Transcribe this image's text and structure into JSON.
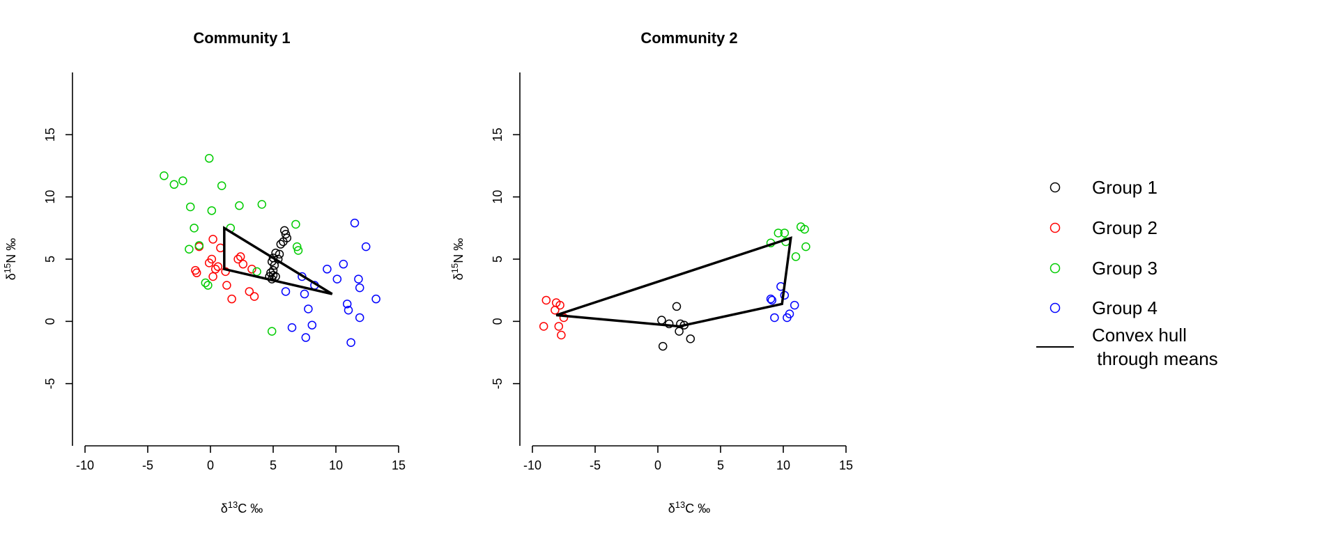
{
  "chart_data": [
    {
      "type": "scatter",
      "title": "Community 1",
      "xlabel": {
        "prefix": "δ",
        "sup": "13",
        "rest": "C ‰"
      },
      "ylabel": {
        "prefix": "δ",
        "sup": "15",
        "rest": "N ‰"
      },
      "xlim": [
        -11,
        16
      ],
      "ylim": [
        -10,
        20
      ],
      "xticks": [
        -10,
        -5,
        0,
        5,
        10,
        15
      ],
      "yticks": [
        -5,
        0,
        5,
        10,
        15
      ],
      "series": [
        {
          "name": "Group 1",
          "color": "#000000",
          "points": [
            [
              5.9,
              7.3
            ],
            [
              6.0,
              7.0
            ],
            [
              6.1,
              6.7
            ],
            [
              5.8,
              6.4
            ],
            [
              5.6,
              6.2
            ],
            [
              5.2,
              5.5
            ],
            [
              5.5,
              5.4
            ],
            [
              5.0,
              5.1
            ],
            [
              5.4,
              5.0
            ],
            [
              4.9,
              4.8
            ],
            [
              5.1,
              4.5
            ],
            [
              5.0,
              4.1
            ],
            [
              4.8,
              3.9
            ],
            [
              5.0,
              3.7
            ],
            [
              4.7,
              3.6
            ],
            [
              4.9,
              3.4
            ],
            [
              5.2,
              3.6
            ]
          ]
        },
        {
          "name": "Group 2",
          "color": "#ff0000",
          "points": [
            [
              0.2,
              6.6
            ],
            [
              0.8,
              5.9
            ],
            [
              -0.9,
              6.0
            ],
            [
              0.1,
              5.0
            ],
            [
              2.2,
              5.0
            ],
            [
              2.4,
              5.2
            ],
            [
              -0.1,
              4.7
            ],
            [
              2.6,
              4.6
            ],
            [
              0.6,
              4.4
            ],
            [
              0.4,
              4.2
            ],
            [
              -1.2,
              4.1
            ],
            [
              1.2,
              4.0
            ],
            [
              -1.1,
              3.9
            ],
            [
              3.3,
              4.2
            ],
            [
              0.2,
              3.6
            ],
            [
              1.3,
              2.9
            ],
            [
              3.1,
              2.4
            ],
            [
              3.5,
              2.0
            ],
            [
              1.7,
              1.8
            ]
          ]
        },
        {
          "name": "Group 3",
          "color": "#00cc00",
          "points": [
            [
              -0.1,
              13.1
            ],
            [
              -3.7,
              11.7
            ],
            [
              -2.2,
              11.3
            ],
            [
              -2.9,
              11.0
            ],
            [
              0.9,
              10.9
            ],
            [
              2.3,
              9.3
            ],
            [
              4.1,
              9.4
            ],
            [
              -1.6,
              9.2
            ],
            [
              0.1,
              8.9
            ],
            [
              6.8,
              7.8
            ],
            [
              1.6,
              7.5
            ],
            [
              -1.3,
              7.5
            ],
            [
              6.9,
              6.0
            ],
            [
              7.0,
              5.7
            ],
            [
              -0.9,
              6.1
            ],
            [
              -1.7,
              5.8
            ],
            [
              3.7,
              4.0
            ],
            [
              -0.4,
              3.1
            ],
            [
              -0.2,
              2.9
            ],
            [
              4.9,
              -0.8
            ]
          ]
        },
        {
          "name": "Group 4",
          "color": "#0000ff",
          "points": [
            [
              11.5,
              7.9
            ],
            [
              12.4,
              6.0
            ],
            [
              10.6,
              4.6
            ],
            [
              9.3,
              4.2
            ],
            [
              7.3,
              3.6
            ],
            [
              10.1,
              3.4
            ],
            [
              11.8,
              3.4
            ],
            [
              8.3,
              2.9
            ],
            [
              11.9,
              2.7
            ],
            [
              6.0,
              2.4
            ],
            [
              7.5,
              2.2
            ],
            [
              13.2,
              1.8
            ],
            [
              10.9,
              1.4
            ],
            [
              7.8,
              1.0
            ],
            [
              11.0,
              0.9
            ],
            [
              11.9,
              0.3
            ],
            [
              8.1,
              -0.3
            ],
            [
              6.5,
              -0.5
            ],
            [
              7.6,
              -1.3
            ],
            [
              11.2,
              -1.7
            ]
          ]
        }
      ],
      "hull": [
        [
          1.1,
          7.5
        ],
        [
          9.7,
          2.2
        ],
        [
          1.1,
          4.2
        ]
      ]
    },
    {
      "type": "scatter",
      "title": "Community 2",
      "xlabel": {
        "prefix": "δ",
        "sup": "13",
        "rest": "C ‰"
      },
      "ylabel": {
        "prefix": "δ",
        "sup": "15",
        "rest": "N ‰"
      },
      "xlim": [
        -11,
        16
      ],
      "ylim": [
        -10,
        20
      ],
      "xticks": [
        -10,
        -5,
        0,
        5,
        10,
        15
      ],
      "yticks": [
        -5,
        0,
        5,
        10,
        15
      ],
      "series": [
        {
          "name": "Group 1",
          "color": "#000000",
          "points": [
            [
              1.5,
              1.2
            ],
            [
              0.3,
              0.1
            ],
            [
              0.9,
              -0.2
            ],
            [
              1.8,
              -0.2
            ],
            [
              2.1,
              -0.3
            ],
            [
              1.7,
              -0.8
            ],
            [
              2.6,
              -1.4
            ],
            [
              0.4,
              -2.0
            ]
          ]
        },
        {
          "name": "Group 2",
          "color": "#ff0000",
          "points": [
            [
              -8.9,
              1.7
            ],
            [
              -8.1,
              1.5
            ],
            [
              -7.8,
              1.3
            ],
            [
              -8.2,
              0.9
            ],
            [
              -7.5,
              0.3
            ],
            [
              -9.1,
              -0.4
            ],
            [
              -7.9,
              -0.4
            ],
            [
              -7.7,
              -1.1
            ]
          ]
        },
        {
          "name": "Group 3",
          "color": "#00cc00",
          "points": [
            [
              11.4,
              7.6
            ],
            [
              11.7,
              7.4
            ],
            [
              9.6,
              7.1
            ],
            [
              10.1,
              7.1
            ],
            [
              9.0,
              6.3
            ],
            [
              10.2,
              6.4
            ],
            [
              11.8,
              6.0
            ],
            [
              11.0,
              5.2
            ]
          ]
        },
        {
          "name": "Group 4",
          "color": "#0000ff",
          "points": [
            [
              9.8,
              2.8
            ],
            [
              10.1,
              2.1
            ],
            [
              9.0,
              1.8
            ],
            [
              9.1,
              1.7
            ],
            [
              10.9,
              1.3
            ],
            [
              10.5,
              0.6
            ],
            [
              9.3,
              0.3
            ],
            [
              10.3,
              0.3
            ]
          ]
        }
      ],
      "hull": [
        [
          -8.1,
          0.5
        ],
        [
          10.6,
          6.7
        ],
        [
          9.9,
          1.4
        ],
        [
          1.7,
          -0.4
        ]
      ]
    }
  ],
  "legend": {
    "placement": "right",
    "items": [
      {
        "type": "point",
        "label": "Group  1",
        "color": "#000000"
      },
      {
        "type": "point",
        "label": "Group  2",
        "color": "#ff0000"
      },
      {
        "type": "point",
        "label": "Group  3",
        "color": "#00cc00"
      },
      {
        "type": "point",
        "label": "Group  4",
        "color": "#0000ff"
      },
      {
        "type": "line",
        "label": "Convex hull",
        "label2": " through means",
        "color": "#000000"
      }
    ]
  }
}
